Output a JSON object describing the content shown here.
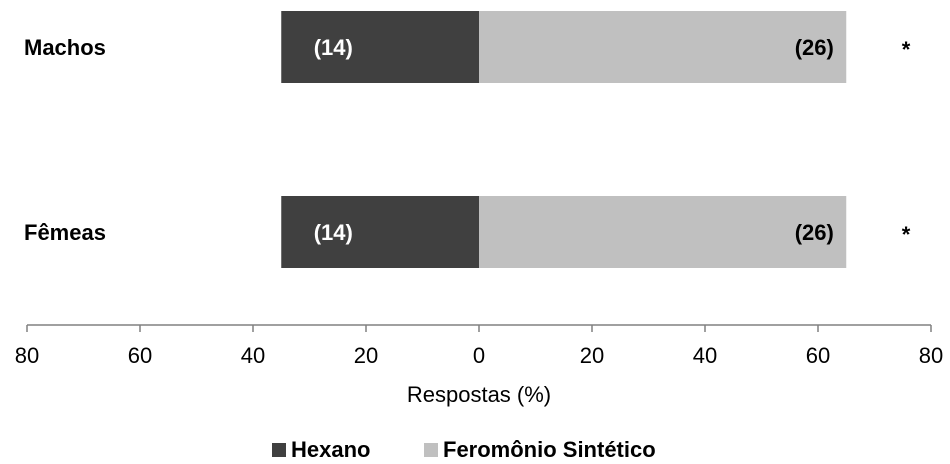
{
  "chart_data": {
    "type": "bar",
    "orientation": "horizontal-diverging",
    "categories": [
      "Machos",
      "Fêmeas"
    ],
    "series": [
      {
        "name": "Hexano",
        "values": [
          35,
          35
        ],
        "labels": [
          "(14)",
          "(14)"
        ],
        "color": "#404040",
        "side": "left"
      },
      {
        "name": "Feromônio Sintético",
        "values": [
          65,
          65
        ],
        "labels": [
          "(26)",
          "(26)"
        ],
        "color": "#c0c0c0",
        "side": "right"
      }
    ],
    "significance": [
      "*",
      "*"
    ],
    "xlabel": "Respostas (%)",
    "xlim": [
      -80,
      80
    ],
    "ticks": [
      80,
      60,
      40,
      20,
      0,
      20,
      40,
      60,
      80
    ],
    "grid": false,
    "legend_position": "bottom-center"
  }
}
